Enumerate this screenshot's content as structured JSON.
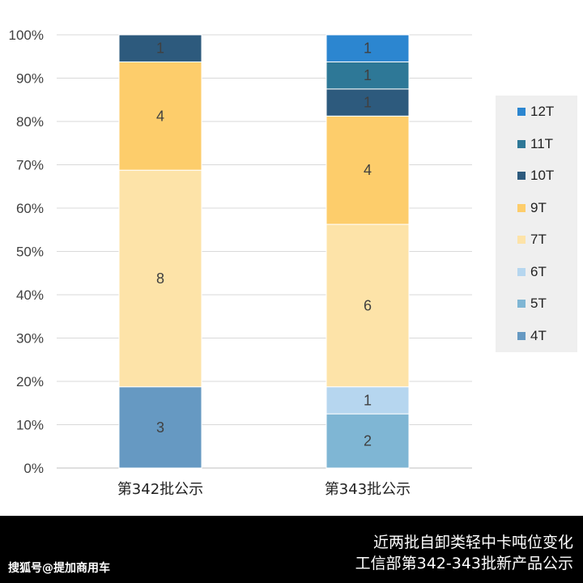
{
  "chart_data": {
    "type": "bar",
    "stacked": "percent",
    "categories": [
      "第342批公示",
      "第343批公示"
    ],
    "series": [
      {
        "name": "4T",
        "values": [
          3,
          0
        ],
        "color": "#6699c2"
      },
      {
        "name": "5T",
        "values": [
          0,
          2
        ],
        "color": "#7fb6d4"
      },
      {
        "name": "6T",
        "values": [
          0,
          1
        ],
        "color": "#b6d6ef"
      },
      {
        "name": "7T",
        "values": [
          8,
          6
        ],
        "color": "#fde3a8"
      },
      {
        "name": "9T",
        "values": [
          4,
          4
        ],
        "color": "#fdcd6b"
      },
      {
        "name": "10T",
        "values": [
          1,
          1
        ],
        "color": "#2d5a7d"
      },
      {
        "name": "11T",
        "values": [
          0,
          1
        ],
        "color": "#2e7897"
      },
      {
        "name": "12T",
        "values": [
          0,
          1
        ],
        "color": "#2c86d0"
      }
    ],
    "y_ticks": [
      "0%",
      "10%",
      "20%",
      "30%",
      "40%",
      "50%",
      "60%",
      "70%",
      "80%",
      "90%",
      "100%"
    ],
    "ylim": [
      0,
      100
    ],
    "grid": true,
    "legend_position": "right"
  },
  "footer": {
    "title_line1": "近两批自卸类轻中卡吨位变化",
    "title_line2": "工信部第342-343批新产品公示",
    "source": "搜狐号@提加商用车"
  }
}
